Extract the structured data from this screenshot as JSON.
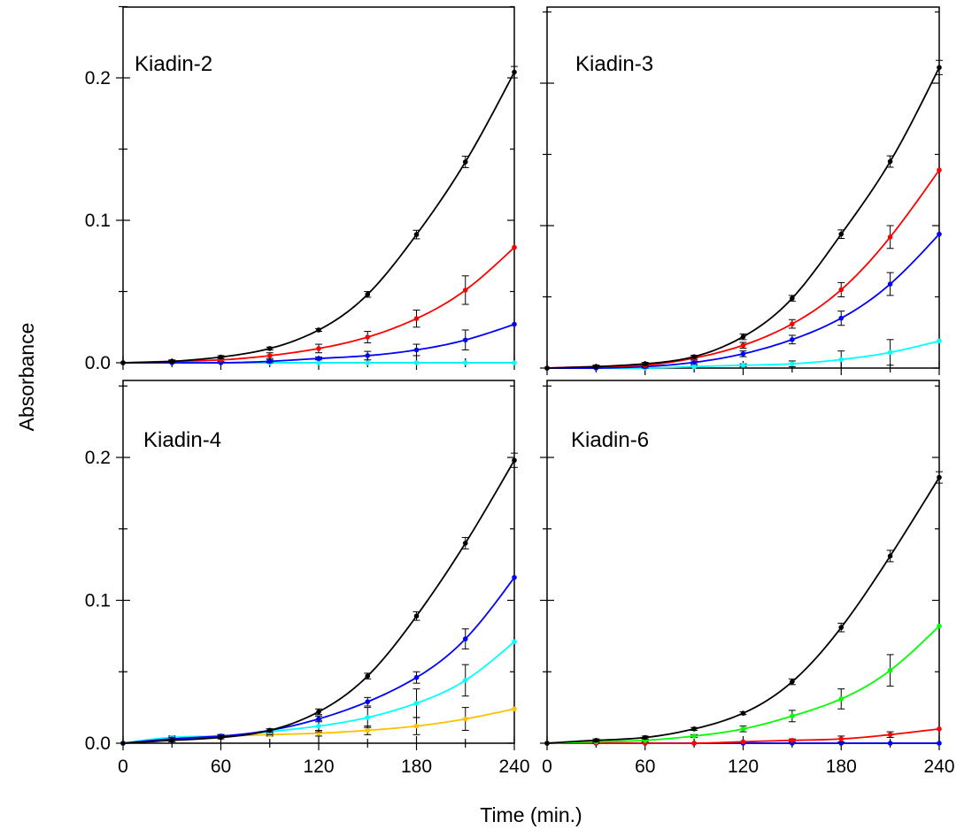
{
  "figure": {
    "ylabel": "Absorbance",
    "xlabel": "Time (min.)"
  },
  "chart_data": [
    {
      "type": "line",
      "title": "Kiadin-2",
      "x": [
        0,
        30,
        60,
        90,
        120,
        150,
        180,
        210,
        240
      ],
      "xticks": [
        "0",
        "60",
        "120",
        "180",
        "240"
      ],
      "yticks": [
        "0.0",
        "0.1",
        "0.2"
      ],
      "xlim": [
        0,
        240
      ],
      "ylim": [
        0,
        0.25
      ],
      "series": [
        {
          "color": "#000000",
          "values": [
            0.0,
            0.001,
            0.004,
            0.01,
            0.023,
            0.048,
            0.09,
            0.141,
            0.204
          ],
          "errors": [
            0,
            0.001,
            0.001,
            0.001,
            0.001,
            0.002,
            0.003,
            0.004,
            0.004
          ]
        },
        {
          "color": "#ff0000",
          "values": [
            0.0,
            0.001,
            0.002,
            0.005,
            0.01,
            0.018,
            0.031,
            0.051,
            0.081
          ],
          "errors": [
            0,
            0.0005,
            0.001,
            0.002,
            0.003,
            0.004,
            0.006,
            0.01,
            0
          ]
        },
        {
          "color": "#0000ff",
          "values": [
            0.0,
            0.0,
            0.0,
            0.001,
            0.003,
            0.005,
            0.009,
            0.016,
            0.027
          ],
          "errors": [
            0,
            0,
            0,
            0.001,
            0.001,
            0.003,
            0.004,
            0.007,
            0
          ]
        },
        {
          "color": "#00ffff",
          "values": [
            0.0,
            0.0,
            0.0,
            0.0,
            0.0,
            0.0,
            0.0,
            0.0,
            0.0
          ],
          "errors": [
            0,
            0,
            0,
            0,
            0,
            0,
            0,
            0,
            0
          ]
        }
      ]
    },
    {
      "type": "line",
      "title": "Kiadin-3",
      "x": [
        0,
        30,
        60,
        90,
        120,
        150,
        180,
        210,
        240
      ],
      "xticks": [
        "0",
        "60",
        "120",
        "180",
        "240"
      ],
      "yticks": [],
      "xlim": [
        0,
        240
      ],
      "ylim": [
        0,
        0.25
      ],
      "series": [
        {
          "color": "#000000",
          "values": [
            0.0,
            0.001,
            0.003,
            0.008,
            0.022,
            0.049,
            0.094,
            0.145,
            0.211
          ],
          "errors": [
            0,
            0.001,
            0.001,
            0.001,
            0.002,
            0.002,
            0.003,
            0.004,
            0.005
          ]
        },
        {
          "color": "#ff0000",
          "values": [
            0.0,
            0.001,
            0.002,
            0.007,
            0.016,
            0.031,
            0.055,
            0.092,
            0.139
          ],
          "errors": [
            0,
            0.001,
            0.001,
            0.001,
            0.002,
            0.003,
            0.005,
            0.008,
            0
          ]
        },
        {
          "color": "#0000ff",
          "values": [
            0.0,
            0.0,
            0.001,
            0.004,
            0.01,
            0.02,
            0.035,
            0.059,
            0.094
          ],
          "errors": [
            0,
            0,
            0.001,
            0.001,
            0.002,
            0.003,
            0.005,
            0.008,
            0
          ]
        },
        {
          "color": "#00ffff",
          "values": [
            0.0,
            0.0,
            0.0,
            0.001,
            0.002,
            0.003,
            0.006,
            0.011,
            0.019
          ],
          "errors": [
            0,
            0,
            0,
            0.001,
            0.001,
            0.002,
            0.006,
            0.009,
            0
          ]
        }
      ]
    },
    {
      "type": "line",
      "title": "Kiadin-4",
      "x": [
        0,
        30,
        60,
        90,
        120,
        150,
        180,
        210,
        240
      ],
      "xticks": [
        "0",
        "60",
        "120",
        "180",
        "240"
      ],
      "yticks": [
        "0.0",
        "0.1",
        "0.2"
      ],
      "xlim": [
        0,
        240
      ],
      "ylim": [
        0,
        0.25
      ],
      "series": [
        {
          "color": "#000000",
          "values": [
            0.0,
            0.002,
            0.004,
            0.009,
            0.022,
            0.047,
            0.089,
            0.14,
            0.198
          ],
          "errors": [
            0,
            0.001,
            0.001,
            0.001,
            0.002,
            0.002,
            0.003,
            0.004,
            0.005
          ]
        },
        {
          "color": "#0000ff",
          "values": [
            0.0,
            0.003,
            0.005,
            0.009,
            0.017,
            0.029,
            0.046,
            0.073,
            0.116
          ],
          "errors": [
            0,
            0.001,
            0.001,
            0.001,
            0.002,
            0.003,
            0.004,
            0.007,
            0
          ]
        },
        {
          "color": "#00ffff",
          "values": [
            0.0,
            0.004,
            0.005,
            0.008,
            0.012,
            0.018,
            0.028,
            0.044,
            0.071
          ],
          "errors": [
            0,
            0.001,
            0.001,
            0.002,
            0.004,
            0.007,
            0.01,
            0.011,
            0
          ]
        },
        {
          "color": "#ffc000",
          "values": [
            0.0,
            0.004,
            0.005,
            0.006,
            0.007,
            0.009,
            0.012,
            0.017,
            0.024
          ],
          "errors": [
            0,
            0.001,
            0.001,
            0.001,
            0.002,
            0.003,
            0.006,
            0.008,
            0
          ]
        }
      ]
    },
    {
      "type": "line",
      "title": "Kiadin-6",
      "x": [
        0,
        30,
        60,
        90,
        120,
        150,
        180,
        210,
        240
      ],
      "xticks": [
        "0",
        "60",
        "120",
        "180",
        "240"
      ],
      "yticks": [],
      "xlim": [
        0,
        240
      ],
      "ylim": [
        0,
        0.25
      ],
      "series": [
        {
          "color": "#000000",
          "values": [
            0.0,
            0.002,
            0.004,
            0.01,
            0.021,
            0.043,
            0.081,
            0.131,
            0.186
          ],
          "errors": [
            0,
            0.001,
            0.001,
            0.001,
            0.001,
            0.002,
            0.003,
            0.004,
            0.004
          ]
        },
        {
          "color": "#00ff00",
          "values": [
            0.0,
            0.001,
            0.002,
            0.005,
            0.01,
            0.019,
            0.031,
            0.051,
            0.082
          ],
          "errors": [
            0,
            0.001,
            0.001,
            0.001,
            0.002,
            0.004,
            0.007,
            0.011,
            0
          ]
        },
        {
          "color": "#ff0000",
          "values": [
            0.0,
            0.0,
            0.0,
            0.0,
            0.001,
            0.002,
            0.003,
            0.006,
            0.01
          ],
          "errors": [
            0,
            0,
            0,
            0,
            0,
            0.001,
            0.002,
            0.002,
            0
          ]
        },
        {
          "color": "#0000ff",
          "values": [
            0.0,
            0.0,
            0.0,
            0.0,
            0.0,
            0.0,
            0.0,
            0.0,
            0.0
          ],
          "errors": [
            0,
            0,
            0,
            0,
            0,
            0,
            0,
            0,
            0
          ]
        }
      ]
    }
  ]
}
